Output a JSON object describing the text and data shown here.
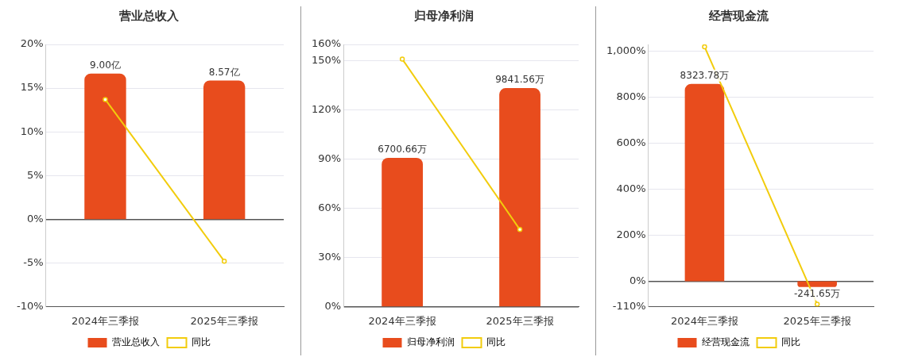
{
  "chart_data": [
    {
      "type": "bar",
      "title": "营业总收入",
      "categories": [
        "2024年三季报",
        "2025年三季报"
      ],
      "series": [
        {
          "name": "营业总收入",
          "color": "#e84c1d",
          "values": [
            9.0,
            8.57
          ],
          "value_labels": [
            "9.00亿",
            "8.57亿"
          ],
          "axis": "y2"
        },
        {
          "type": "line",
          "name": "同比",
          "color": "#f2cc0c",
          "values": [
            13.7,
            -4.8
          ]
        }
      ],
      "ylim": [
        -10,
        20
      ],
      "yticks": [
        {
          "value": -10,
          "label": "-10%"
        },
        {
          "value": -5,
          "label": "-5%"
        },
        {
          "value": 0,
          "label": "0%"
        },
        {
          "value": 5,
          "label": "5%"
        },
        {
          "value": 10,
          "label": "10%"
        },
        {
          "value": 15,
          "label": "15%"
        },
        {
          "value": 20,
          "label": "20%"
        }
      ],
      "grid": "y",
      "legend": "bottom",
      "marker": "circle"
    },
    {
      "type": "bar",
      "title": "归母净利润",
      "categories": [
        "2024年三季报",
        "2025年三季报"
      ],
      "series": [
        {
          "name": "归母净利润",
          "color": "#e84c1d",
          "values": [
            6700.66,
            9841.56
          ],
          "value_labels": [
            "6700.66万",
            "9841.56万"
          ],
          "axis": "y2"
        },
        {
          "type": "line",
          "name": "同比",
          "color": "#f2cc0c",
          "values": [
            151,
            47
          ]
        }
      ],
      "ylim": [
        0,
        160
      ],
      "yticks": [
        {
          "value": 0,
          "label": "0%"
        },
        {
          "value": 30,
          "label": "30%"
        },
        {
          "value": 60,
          "label": "60%"
        },
        {
          "value": 90,
          "label": "90%"
        },
        {
          "value": 120,
          "label": "120%"
        },
        {
          "value": 150,
          "label": "150%"
        },
        {
          "value": 160,
          "label": "160%"
        }
      ],
      "grid": "y",
      "legend": "bottom",
      "marker": "circle"
    },
    {
      "type": "bar",
      "title": "经营现金流",
      "categories": [
        "2024年三季报",
        "2025年三季报"
      ],
      "series": [
        {
          "name": "经营现金流",
          "color": "#e84c1d",
          "values": [
            8323.78,
            -241.65
          ],
          "value_labels": [
            "8323.78万",
            "-241.65万"
          ],
          "axis": "y2"
        },
        {
          "type": "line",
          "name": "同比",
          "color": "#f2cc0c",
          "values": [
            1020,
            -100
          ]
        }
      ],
      "ylim": [
        -110,
        1030
      ],
      "yticks": [
        {
          "value": -110,
          "label": "-110%"
        },
        {
          "value": 0,
          "label": "0%"
        },
        {
          "value": 200,
          "label": "200%"
        },
        {
          "value": 400,
          "label": "400%"
        },
        {
          "value": 600,
          "label": "600%"
        },
        {
          "value": 800,
          "label": "800%"
        },
        {
          "value": 1000,
          "label": "1,000%"
        }
      ],
      "grid": "y",
      "legend": "bottom",
      "marker": "circle"
    }
  ]
}
